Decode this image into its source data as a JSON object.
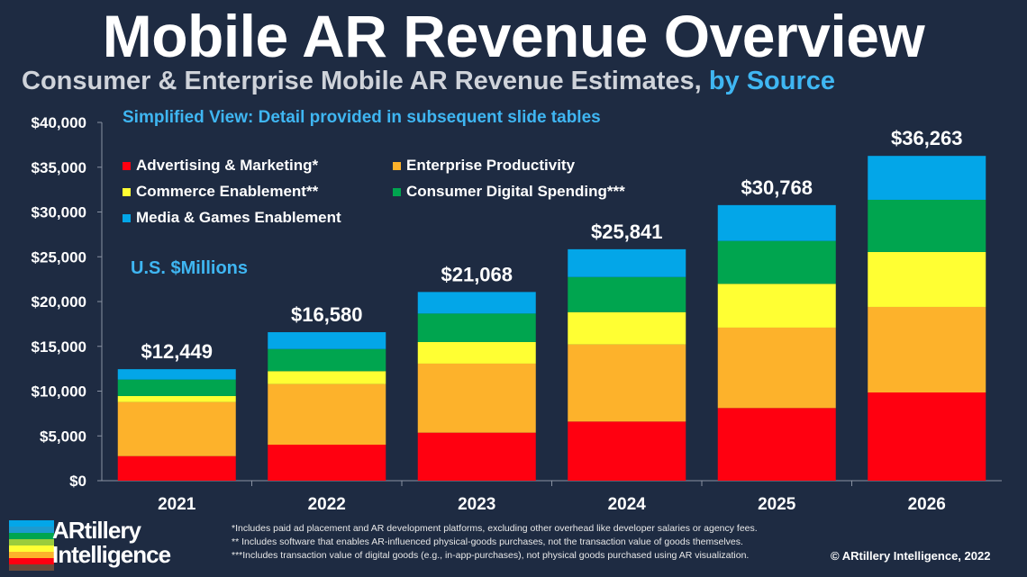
{
  "header": {
    "title": "Mobile AR Revenue Overview",
    "subtitle": "Consumer & Enterprise Mobile AR Revenue Estimates,",
    "subtitle_highlight": "by Source",
    "note": "Simplified View: Detail provided in subsequent slide tables",
    "units": "U.S. $Millions"
  },
  "chart_data": {
    "type": "bar",
    "stacked": true,
    "title": "Mobile AR Revenue Overview",
    "categories": [
      "2021",
      "2022",
      "2023",
      "2024",
      "2025",
      "2026"
    ],
    "ylim": [
      0,
      40000
    ],
    "yticks": [
      "$0",
      "$5,000",
      "$10,000",
      "$15,000",
      "$20,000",
      "$25,000",
      "$30,000",
      "$35,000",
      "$40,000"
    ],
    "ylabel": "U.S. $Millions",
    "legend_position": "top-left",
    "grid": false,
    "totals": [
      "$12,449",
      "$16,580",
      "$21,068",
      "$25,841",
      "$30,768",
      "$36,263"
    ],
    "series": [
      {
        "name": "Advertising & Marketing*",
        "color": "#ff0010",
        "values": [
          2740,
          4020,
          5360,
          6600,
          8110,
          9850
        ]
      },
      {
        "name": "Enterprise Productivity",
        "color": "#fdb22b",
        "values": [
          6040,
          6770,
          7710,
          8610,
          8980,
          9550
        ]
      },
      {
        "name": "Commerce Enablement**",
        "color": "#ffff33",
        "values": [
          670,
          1440,
          2410,
          3610,
          4890,
          6130
        ]
      },
      {
        "name": "Consumer Digital Spending***",
        "color": "#00a54f",
        "values": [
          1840,
          2470,
          3180,
          3920,
          4790,
          5830
        ]
      },
      {
        "name": "Media & Games Enablement",
        "color": "#03a6e8",
        "values": [
          1159,
          1880,
          2408,
          3101,
          3998,
          4903
        ]
      }
    ]
  },
  "footer": {
    "footnotes": [
      "*Includes paid ad placement and AR development platforms, excluding other overhead like developer salaries or agency fees.",
      "** Includes software that enables AR-influenced physical-goods purchases, not the transaction value of goods themselves.",
      "***Includes transaction value of digital goods (e.g., in-app-purchases), not physical goods purchased using AR visualization."
    ],
    "copyright": "© ARtillery Intelligence, 2022",
    "logo_line1": "ARtillery",
    "logo_line2": "Intelligence"
  }
}
